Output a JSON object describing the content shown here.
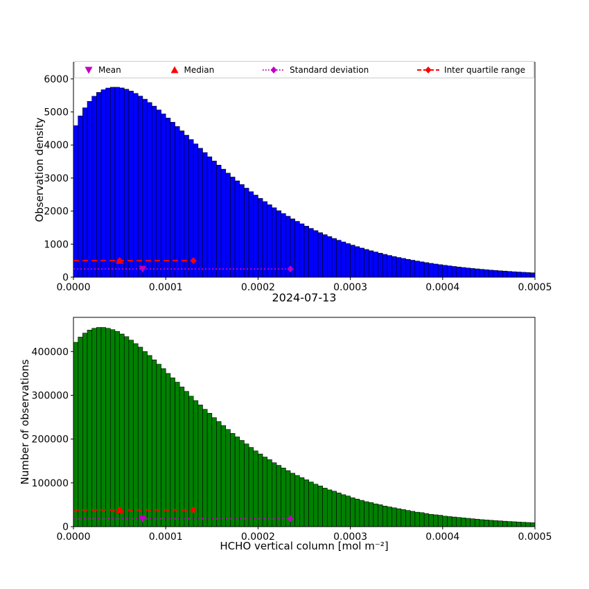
{
  "figure": {
    "background": "#ffffff"
  },
  "colors": {
    "bar_blue": "#0000FF",
    "bar_green": "#008000",
    "red": "#FF0000",
    "magenta": "#BF00BF",
    "axis": "#000000",
    "legend_border": "#cccccc"
  },
  "legend": {
    "position": "top",
    "items": [
      {
        "label": "Mean",
        "marker": "triangle-down",
        "color": "#BF00BF",
        "line": "none"
      },
      {
        "label": "Median",
        "marker": "triangle-up",
        "color": "#FF0000",
        "line": "none"
      },
      {
        "label": "Standard deviation",
        "marker": "diamond",
        "color": "#BF00BF",
        "line": "dotted"
      },
      {
        "label": "Inter quartile range",
        "marker": "diamond",
        "color": "#FF0000",
        "line": "dashed"
      }
    ]
  },
  "chart_data": [
    {
      "type": "bar",
      "subtype": "histogram",
      "title": "",
      "xlabel": "",
      "ylabel": "Observation density",
      "grid": false,
      "xlim": [
        0,
        0.0005
      ],
      "ylim": [
        0,
        6500
      ],
      "bin_start": 0,
      "bin_width": 5e-06,
      "bar_color": "#0000FF",
      "xticks": [
        {
          "v": 0,
          "label": "0.0000"
        },
        {
          "v": 0.0001,
          "label": "0.0001"
        },
        {
          "v": 0.0002,
          "label": "0.0002"
        },
        {
          "v": 0.0003,
          "label": "0.0003"
        },
        {
          "v": 0.0004,
          "label": "0.0004"
        },
        {
          "v": 0.0005,
          "label": "0.0005"
        }
      ],
      "yticks": [
        {
          "v": 0,
          "label": "0"
        },
        {
          "v": 1000,
          "label": "1000"
        },
        {
          "v": 2000,
          "label": "2000"
        },
        {
          "v": 3000,
          "label": "3000"
        },
        {
          "v": 4000,
          "label": "4000"
        },
        {
          "v": 5000,
          "label": "5000"
        },
        {
          "v": 6000,
          "label": "6000"
        }
      ],
      "values": [
        4585,
        4881,
        5125,
        5321,
        5475,
        5591,
        5672,
        5723,
        5747,
        5747,
        5726,
        5687,
        5631,
        5561,
        5479,
        5386,
        5285,
        5176,
        5061,
        4941,
        4816,
        4689,
        4560,
        4429,
        4297,
        4164,
        4033,
        3901,
        3771,
        3643,
        3516,
        3391,
        3268,
        3148,
        3030,
        2915,
        2803,
        2694,
        2587,
        2484,
        2384,
        2287,
        2192,
        2101,
        2012,
        1927,
        1845,
        1765,
        1689,
        1615,
        1544,
        1476,
        1410,
        1347,
        1286,
        1228,
        1172,
        1118,
        1067,
        1017,
        970,
        925,
        881,
        840,
        800,
        762,
        726,
        691,
        658,
        626,
        596,
        568,
        540,
        514,
        488,
        464,
        441,
        419,
        398,
        379,
        360,
        342,
        325,
        309,
        293,
        278,
        264,
        251,
        238,
        226,
        214,
        204,
        193,
        184,
        174,
        165,
        157,
        148,
        141,
        133
      ],
      "stats": {
        "mean": 7.5e-05,
        "median": 5e-05,
        "q1": 5e-05,
        "q3": 0.00013,
        "std_x": 0.000235,
        "iqr_line_y": 500,
        "std_line_y": 250
      }
    },
    {
      "type": "bar",
      "subtype": "histogram",
      "title": "2024-07-13",
      "xlabel": "HCHO vertical column [mol m⁻²]",
      "ylabel": "Number of observations",
      "grid": false,
      "xlim": [
        0,
        0.0005
      ],
      "ylim": [
        0,
        478000
      ],
      "bin_start": 0,
      "bin_width": 5e-06,
      "bar_color": "#008000",
      "xticks": [
        {
          "v": 0,
          "label": "0.0000"
        },
        {
          "v": 0.0001,
          "label": "0.0001"
        },
        {
          "v": 0.0002,
          "label": "0.0002"
        },
        {
          "v": 0.0003,
          "label": "0.0003"
        },
        {
          "v": 0.0004,
          "label": "0.0004"
        },
        {
          "v": 0.0005,
          "label": "0.0005"
        }
      ],
      "yticks": [
        {
          "v": 0,
          "label": "0"
        },
        {
          "v": 100000,
          "label": "100000"
        },
        {
          "v": 200000,
          "label": "200000"
        },
        {
          "v": 300000,
          "label": "300000"
        },
        {
          "v": 400000,
          "label": "400000"
        }
      ],
      "values": [
        421000,
        433000,
        442000,
        449000,
        453000,
        455000,
        455000,
        453000,
        450000,
        446000,
        440000,
        434000,
        426000,
        418000,
        410000,
        400000,
        391000,
        381000,
        371000,
        361000,
        350000,
        340000,
        330000,
        319000,
        309000,
        298000,
        288000,
        278000,
        268000,
        259000,
        249000,
        240000,
        231000,
        222000,
        213000,
        205000,
        197000,
        189000,
        181000,
        173000,
        166000,
        159000,
        153000,
        146000,
        140000,
        134000,
        128000,
        122000,
        117000,
        112000,
        107000,
        102000,
        97000,
        93000,
        88000,
        84000,
        81000,
        77000,
        73000,
        70000,
        66000,
        63000,
        60000,
        57000,
        55000,
        52000,
        50000,
        47000,
        45000,
        43000,
        41000,
        39000,
        37000,
        35000,
        33000,
        32000,
        30000,
        28000,
        27000,
        26000,
        24000,
        23000,
        22000,
        21000,
        20000,
        19000,
        18000,
        17000,
        16000,
        15300,
        14500,
        13700,
        13100,
        12400,
        11700,
        11200,
        10500,
        10000,
        9500,
        9000
      ],
      "stats": {
        "mean": 7.5e-05,
        "median": 5e-05,
        "q1": 5e-05,
        "q3": 0.00013,
        "std_x": 0.000235,
        "iqr_line_y": 38000,
        "std_line_y": 18000
      }
    }
  ]
}
